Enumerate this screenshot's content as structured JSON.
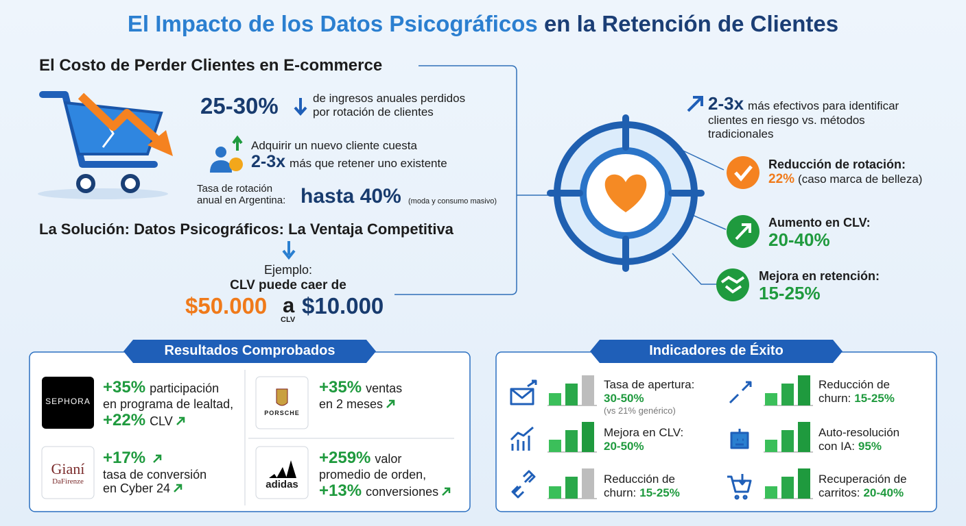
{
  "title": {
    "lead": "El Impacto de los Datos Psicográficos",
    "rest": "en la Retención de Clientes"
  },
  "cost": {
    "heading": "El Costo de Perder Clientes en E-commerce",
    "revenue_loss": {
      "value": "25-30%",
      "description": [
        "de ingresos anuales perdidos",
        "por rotación de clientes"
      ]
    },
    "acquisition": {
      "intro": "Adquirir un nuevo cliente cuesta",
      "value": "2-3x",
      "rest": "más que retener uno existente"
    },
    "churn_rate": {
      "label": [
        "Tasa de rotación",
        "anual en Argentina:"
      ],
      "value": "hasta 40%",
      "note": "(moda y consumo masivo)"
    }
  },
  "solution": {
    "heading": "La Solución: Datos Psicográficos: La Ventaja Competitiva",
    "example": "Ejemplo:",
    "example_text": "CLV puede caer de",
    "from": "$50.000",
    "connector": "a",
    "connector_note": "CLV",
    "to": "$10.000"
  },
  "benefits": [
    {
      "value": "2-3x",
      "text": [
        "más efectivos para identificar",
        "clientes en riesgo vs. métodos",
        "tradicionales"
      ]
    },
    {
      "label": "Reducción de rotación:",
      "value": "22%",
      "note": "(caso marca de belleza)"
    },
    {
      "label": "Aumento en CLV:",
      "value": "20-40%"
    },
    {
      "label": "Mejora en retención:",
      "value": "15-25%"
    }
  ],
  "results": {
    "heading": "Resultados Comprobados",
    "cases": [
      {
        "logo": [
          "SEPHORA"
        ],
        "lines": [
          [
            "+35%",
            "participación"
          ],
          [
            "en programa de lealtad,"
          ],
          [
            "+22%",
            "CLV"
          ]
        ]
      },
      {
        "logo": [
          "PORSCHE"
        ],
        "lines": [
          [
            "+35%",
            "ventas"
          ],
          [
            "en 2 meses"
          ]
        ]
      },
      {
        "logo": [
          "Gianí",
          "DaFirenze"
        ],
        "lines": [
          [
            "+17%"
          ],
          [
            "tasa de conversión"
          ],
          [
            "en Cyber 24"
          ]
        ]
      },
      {
        "logo": [
          "adidas"
        ],
        "lines": [
          [
            "+259%",
            "valor"
          ],
          [
            "promedio de orden,"
          ],
          [
            "+13%",
            "conversiones"
          ]
        ]
      }
    ]
  },
  "indicators": {
    "heading": "Indicadores de Éxito",
    "items": [
      {
        "label": [
          "Tasa de apertura:"
        ],
        "value": "30-50%",
        "note": "(vs 21% genérico)"
      },
      {
        "label": [
          "Reducción de",
          "churn:"
        ],
        "value": "15-25%"
      },
      {
        "label": [
          "Mejora en CLV:"
        ],
        "value": "20-50%"
      },
      {
        "label": [
          "Auto-resolución",
          "con IA:"
        ],
        "value": "95%"
      },
      {
        "label": [
          "Reducción de",
          "churn:"
        ],
        "value": "15-25%"
      },
      {
        "label": [
          "Recuperación de",
          "carritos:"
        ],
        "value": "20-40%"
      }
    ]
  }
}
